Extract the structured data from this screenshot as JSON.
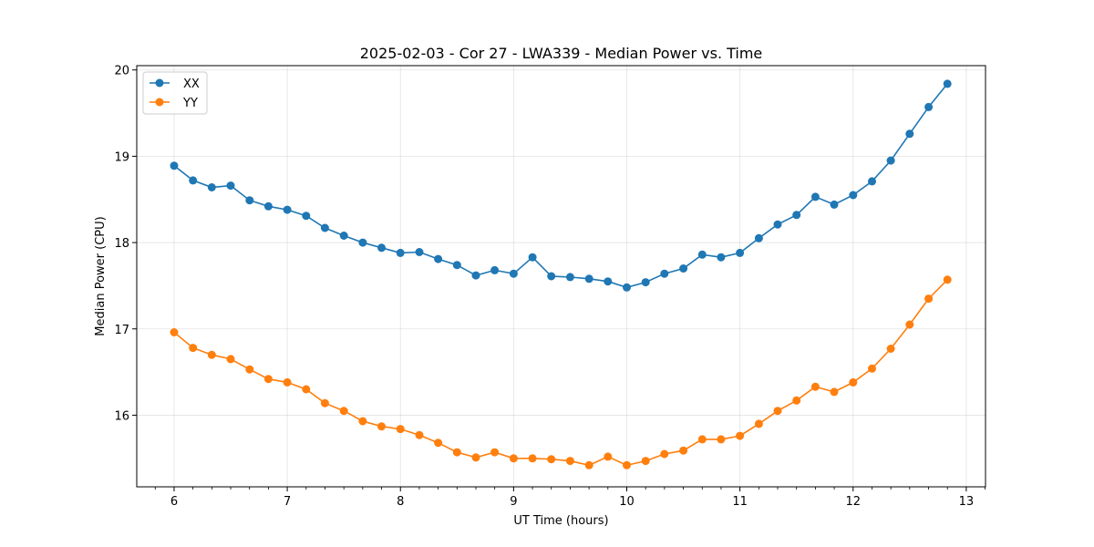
{
  "chart_data": {
    "type": "line",
    "title": "2025-02-03 - Cor 27 - LWA339 - Median Power vs. Time",
    "xlabel": "UT Time (hours)",
    "ylabel": "Median Power (CPU)",
    "xlim": [
      5.67,
      13.17
    ],
    "ylim": [
      15.17,
      20.05
    ],
    "xticks": [
      6,
      7,
      8,
      9,
      10,
      11,
      12,
      13
    ],
    "xtick_labels": [
      "6",
      "7",
      "8",
      "9",
      "10",
      "11",
      "12",
      "13"
    ],
    "yticks": [
      16,
      17,
      18,
      19,
      20
    ],
    "ytick_labels": [
      "16",
      "17",
      "18",
      "19",
      "20"
    ],
    "grid": true,
    "legend_position": "top-left",
    "x": [
      6.0,
      6.167,
      6.333,
      6.5,
      6.667,
      6.833,
      7.0,
      7.167,
      7.333,
      7.5,
      7.667,
      7.833,
      8.0,
      8.167,
      8.333,
      8.5,
      8.667,
      8.833,
      9.0,
      9.167,
      9.333,
      9.5,
      9.667,
      9.833,
      10.0,
      10.167,
      10.333,
      10.5,
      10.667,
      10.833,
      11.0,
      11.167,
      11.333,
      11.5,
      11.667,
      11.833,
      12.0,
      12.167,
      12.333,
      12.5,
      12.667,
      12.833
    ],
    "series": [
      {
        "name": "XX",
        "color": "#1f77b4",
        "values": [
          18.89,
          18.72,
          18.64,
          18.66,
          18.49,
          18.42,
          18.38,
          18.31,
          18.17,
          18.08,
          18.0,
          17.94,
          17.88,
          17.89,
          17.81,
          17.74,
          17.62,
          17.68,
          17.64,
          17.83,
          17.61,
          17.6,
          17.58,
          17.55,
          17.48,
          17.54,
          17.64,
          17.7,
          17.86,
          17.83,
          17.88,
          18.05,
          18.21,
          18.32,
          18.53,
          18.44,
          18.55,
          18.71,
          18.95,
          19.26,
          19.57,
          19.84
        ]
      },
      {
        "name": "YY",
        "color": "#ff7f0e",
        "values": [
          16.96,
          16.78,
          16.7,
          16.65,
          16.53,
          16.42,
          16.38,
          16.3,
          16.14,
          16.05,
          15.93,
          15.87,
          15.84,
          15.77,
          15.68,
          15.57,
          15.51,
          15.57,
          15.5,
          15.5,
          15.49,
          15.47,
          15.42,
          15.52,
          15.42,
          15.47,
          15.55,
          15.59,
          15.72,
          15.72,
          15.76,
          15.9,
          16.05,
          16.17,
          16.33,
          16.27,
          16.38,
          16.54,
          16.77,
          17.05,
          17.35,
          17.57
        ]
      }
    ]
  }
}
